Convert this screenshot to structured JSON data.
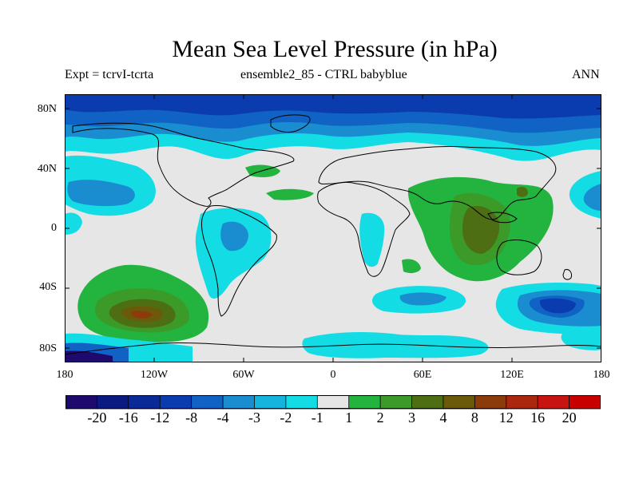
{
  "title": "Mean Sea Level Pressure (in hPa)",
  "subtitle_left": "Expt = tcrvI-tcrta",
  "subtitle_center": "ensemble2_85 - CTRL babyblue",
  "subtitle_right": "ANN",
  "lat_labels": [
    "80N",
    "40N",
    "0",
    "40S",
    "80S"
  ],
  "lon_labels": [
    "180",
    "120W",
    "60W",
    "0",
    "60E",
    "120E",
    "180"
  ],
  "colorbar": {
    "labels": [
      "-20",
      "-16",
      "-12",
      "-8",
      "-4",
      "-3",
      "-2",
      "-1",
      "1",
      "2",
      "3",
      "4",
      "8",
      "12",
      "16",
      "20"
    ],
    "colors": [
      "#1e0a6e",
      "#0a1a80",
      "#0a2a98",
      "#0a3cb0",
      "#1062c4",
      "#1a8cd0",
      "#14b4de",
      "#14dce4",
      "#e6e6e6",
      "#22b43e",
      "#3c9a28",
      "#4e6e14",
      "#6a5a0a",
      "#8c3c0a",
      "#aa280e",
      "#c81410",
      "#c80000"
    ]
  },
  "colors": {
    "background": "#e6e6e6",
    "coastline": "#000000"
  }
}
